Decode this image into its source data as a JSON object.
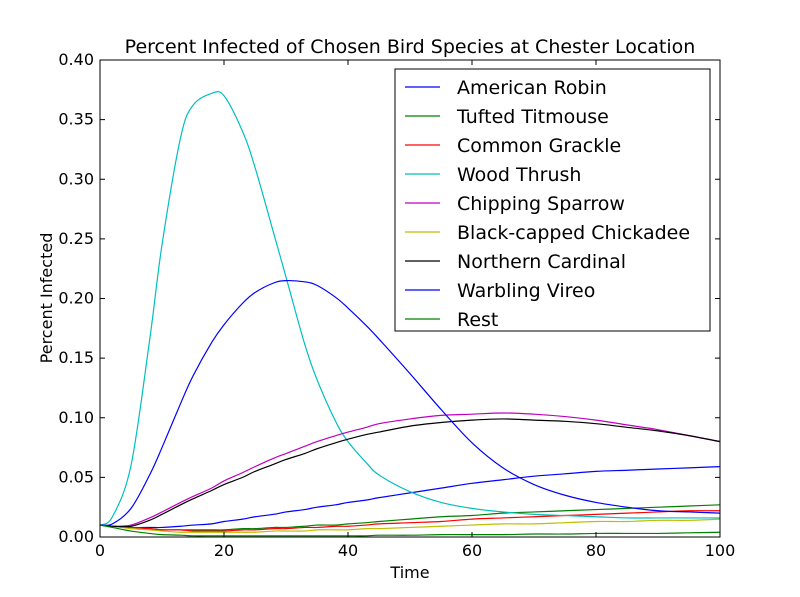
{
  "chart_data": {
    "type": "line",
    "title": "Percent Infected of Chosen Bird Species at Chester Location",
    "xlabel": "Time",
    "ylabel": "Percent Infected",
    "xlim": [
      0,
      100
    ],
    "ylim": [
      0,
      0.4
    ],
    "xticks": [
      0,
      20,
      40,
      60,
      80,
      100
    ],
    "xtick_labels": [
      "0",
      "20",
      "40",
      "60",
      "80",
      "100"
    ],
    "yticks": [
      0,
      0.05,
      0.1,
      0.15,
      0.2,
      0.25,
      0.3,
      0.35,
      0.4
    ],
    "ytick_labels": [
      "0.00",
      "0.05",
      "0.10",
      "0.15",
      "0.20",
      "0.25",
      "0.30",
      "0.35",
      "0.40"
    ],
    "grid": false,
    "legend_position": "top-right",
    "x": [
      0,
      2,
      5,
      8,
      10,
      13,
      15,
      18,
      20,
      23,
      25,
      28,
      30,
      33,
      35,
      38,
      40,
      43,
      45,
      50,
      55,
      60,
      65,
      70,
      75,
      80,
      85,
      90,
      95,
      100
    ],
    "series": [
      {
        "name": "American Robin",
        "color": "#0000ff",
        "values": [
          0.01,
          0.009,
          0.008,
          0.008,
          0.008,
          0.009,
          0.01,
          0.011,
          0.013,
          0.015,
          0.017,
          0.019,
          0.021,
          0.023,
          0.025,
          0.027,
          0.029,
          0.031,
          0.033,
          0.037,
          0.041,
          0.045,
          0.048,
          0.051,
          0.053,
          0.055,
          0.056,
          0.057,
          0.058,
          0.059
        ]
      },
      {
        "name": "Tufted Titmouse",
        "color": "#008000",
        "values": [
          0.01,
          0.009,
          0.008,
          0.007,
          0.006,
          0.006,
          0.006,
          0.006,
          0.006,
          0.007,
          0.007,
          0.008,
          0.008,
          0.009,
          0.01,
          0.01,
          0.011,
          0.012,
          0.013,
          0.015,
          0.017,
          0.018,
          0.02,
          0.021,
          0.022,
          0.023,
          0.024,
          0.025,
          0.026,
          0.027
        ]
      },
      {
        "name": "Common Grackle",
        "color": "#ff0000",
        "values": [
          0.01,
          0.009,
          0.008,
          0.007,
          0.006,
          0.006,
          0.005,
          0.005,
          0.005,
          0.006,
          0.006,
          0.007,
          0.007,
          0.008,
          0.008,
          0.009,
          0.009,
          0.01,
          0.011,
          0.012,
          0.013,
          0.015,
          0.016,
          0.017,
          0.018,
          0.019,
          0.02,
          0.021,
          0.022,
          0.022
        ]
      },
      {
        "name": "Wood Thrush",
        "color": "#00bfbf",
        "values": [
          0.01,
          0.017,
          0.06,
          0.165,
          0.245,
          0.335,
          0.362,
          0.372,
          0.37,
          0.34,
          0.31,
          0.255,
          0.218,
          0.162,
          0.132,
          0.097,
          0.08,
          0.062,
          0.052,
          0.038,
          0.029,
          0.024,
          0.021,
          0.019,
          0.018,
          0.017,
          0.016,
          0.016,
          0.016,
          0.016
        ]
      },
      {
        "name": "Chipping Sparrow",
        "color": "#bf00bf",
        "values": [
          0.01,
          0.009,
          0.01,
          0.016,
          0.021,
          0.029,
          0.034,
          0.041,
          0.047,
          0.054,
          0.059,
          0.066,
          0.07,
          0.076,
          0.08,
          0.085,
          0.088,
          0.092,
          0.095,
          0.099,
          0.102,
          0.103,
          0.104,
          0.103,
          0.101,
          0.098,
          0.094,
          0.09,
          0.085,
          0.08
        ]
      },
      {
        "name": "Black-capped Chickadee",
        "color": "#bfbf00",
        "values": [
          0.01,
          0.009,
          0.007,
          0.006,
          0.005,
          0.004,
          0.004,
          0.004,
          0.004,
          0.004,
          0.004,
          0.005,
          0.005,
          0.005,
          0.006,
          0.006,
          0.006,
          0.007,
          0.007,
          0.008,
          0.009,
          0.01,
          0.011,
          0.011,
          0.012,
          0.013,
          0.013,
          0.014,
          0.014,
          0.015
        ]
      },
      {
        "name": "Northern Cardinal",
        "color": "#000000",
        "values": [
          0.01,
          0.009,
          0.009,
          0.014,
          0.019,
          0.027,
          0.032,
          0.039,
          0.044,
          0.05,
          0.055,
          0.061,
          0.065,
          0.07,
          0.074,
          0.079,
          0.082,
          0.086,
          0.088,
          0.093,
          0.096,
          0.098,
          0.099,
          0.098,
          0.097,
          0.095,
          0.092,
          0.089,
          0.085,
          0.08
        ]
      },
      {
        "name": "Warbling Vireo",
        "color": "#0000ff",
        "values": [
          0.01,
          0.011,
          0.024,
          0.052,
          0.075,
          0.112,
          0.135,
          0.163,
          0.178,
          0.196,
          0.205,
          0.213,
          0.215,
          0.214,
          0.211,
          0.201,
          0.192,
          0.177,
          0.166,
          0.137,
          0.107,
          0.079,
          0.058,
          0.044,
          0.035,
          0.029,
          0.025,
          0.022,
          0.021,
          0.02
        ]
      },
      {
        "name": "Rest",
        "color": "#008000",
        "values": [
          0.01,
          0.008,
          0.005,
          0.003,
          0.002,
          0.0015,
          0.001,
          0.001,
          0.001,
          0.001,
          0.001,
          0.001,
          0.001,
          0.001,
          0.001,
          0.001,
          0.001,
          0.001,
          0.0015,
          0.0015,
          0.002,
          0.002,
          0.002,
          0.0025,
          0.0025,
          0.003,
          0.003,
          0.003,
          0.0035,
          0.004
        ]
      }
    ]
  }
}
